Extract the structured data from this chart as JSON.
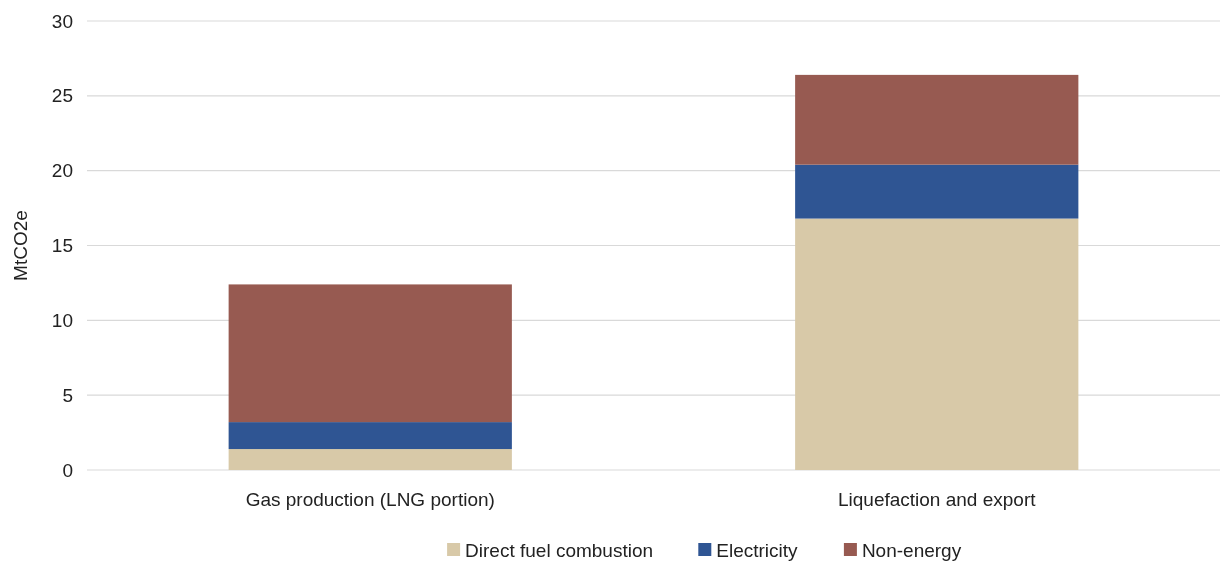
{
  "chart_data": {
    "type": "bar",
    "stacked": true,
    "ylabel": "MtCO2e",
    "categories": [
      "Gas production (LNG portion)",
      "Liquefaction and export"
    ],
    "series": [
      {
        "name": "Direct fuel combustion",
        "color": "#d8c9a8",
        "values": [
          1.4,
          16.8
        ]
      },
      {
        "name": "Electricity",
        "color": "#2f5593",
        "values": [
          1.8,
          3.6
        ]
      },
      {
        "name": "Non-energy",
        "color": "#975a51",
        "values": [
          9.2,
          6.0
        ]
      }
    ],
    "ylim": [
      0,
      30
    ],
    "yticks": [
      0,
      5,
      10,
      15,
      20,
      25,
      30
    ],
    "grid": "y",
    "legend": "bottom"
  }
}
